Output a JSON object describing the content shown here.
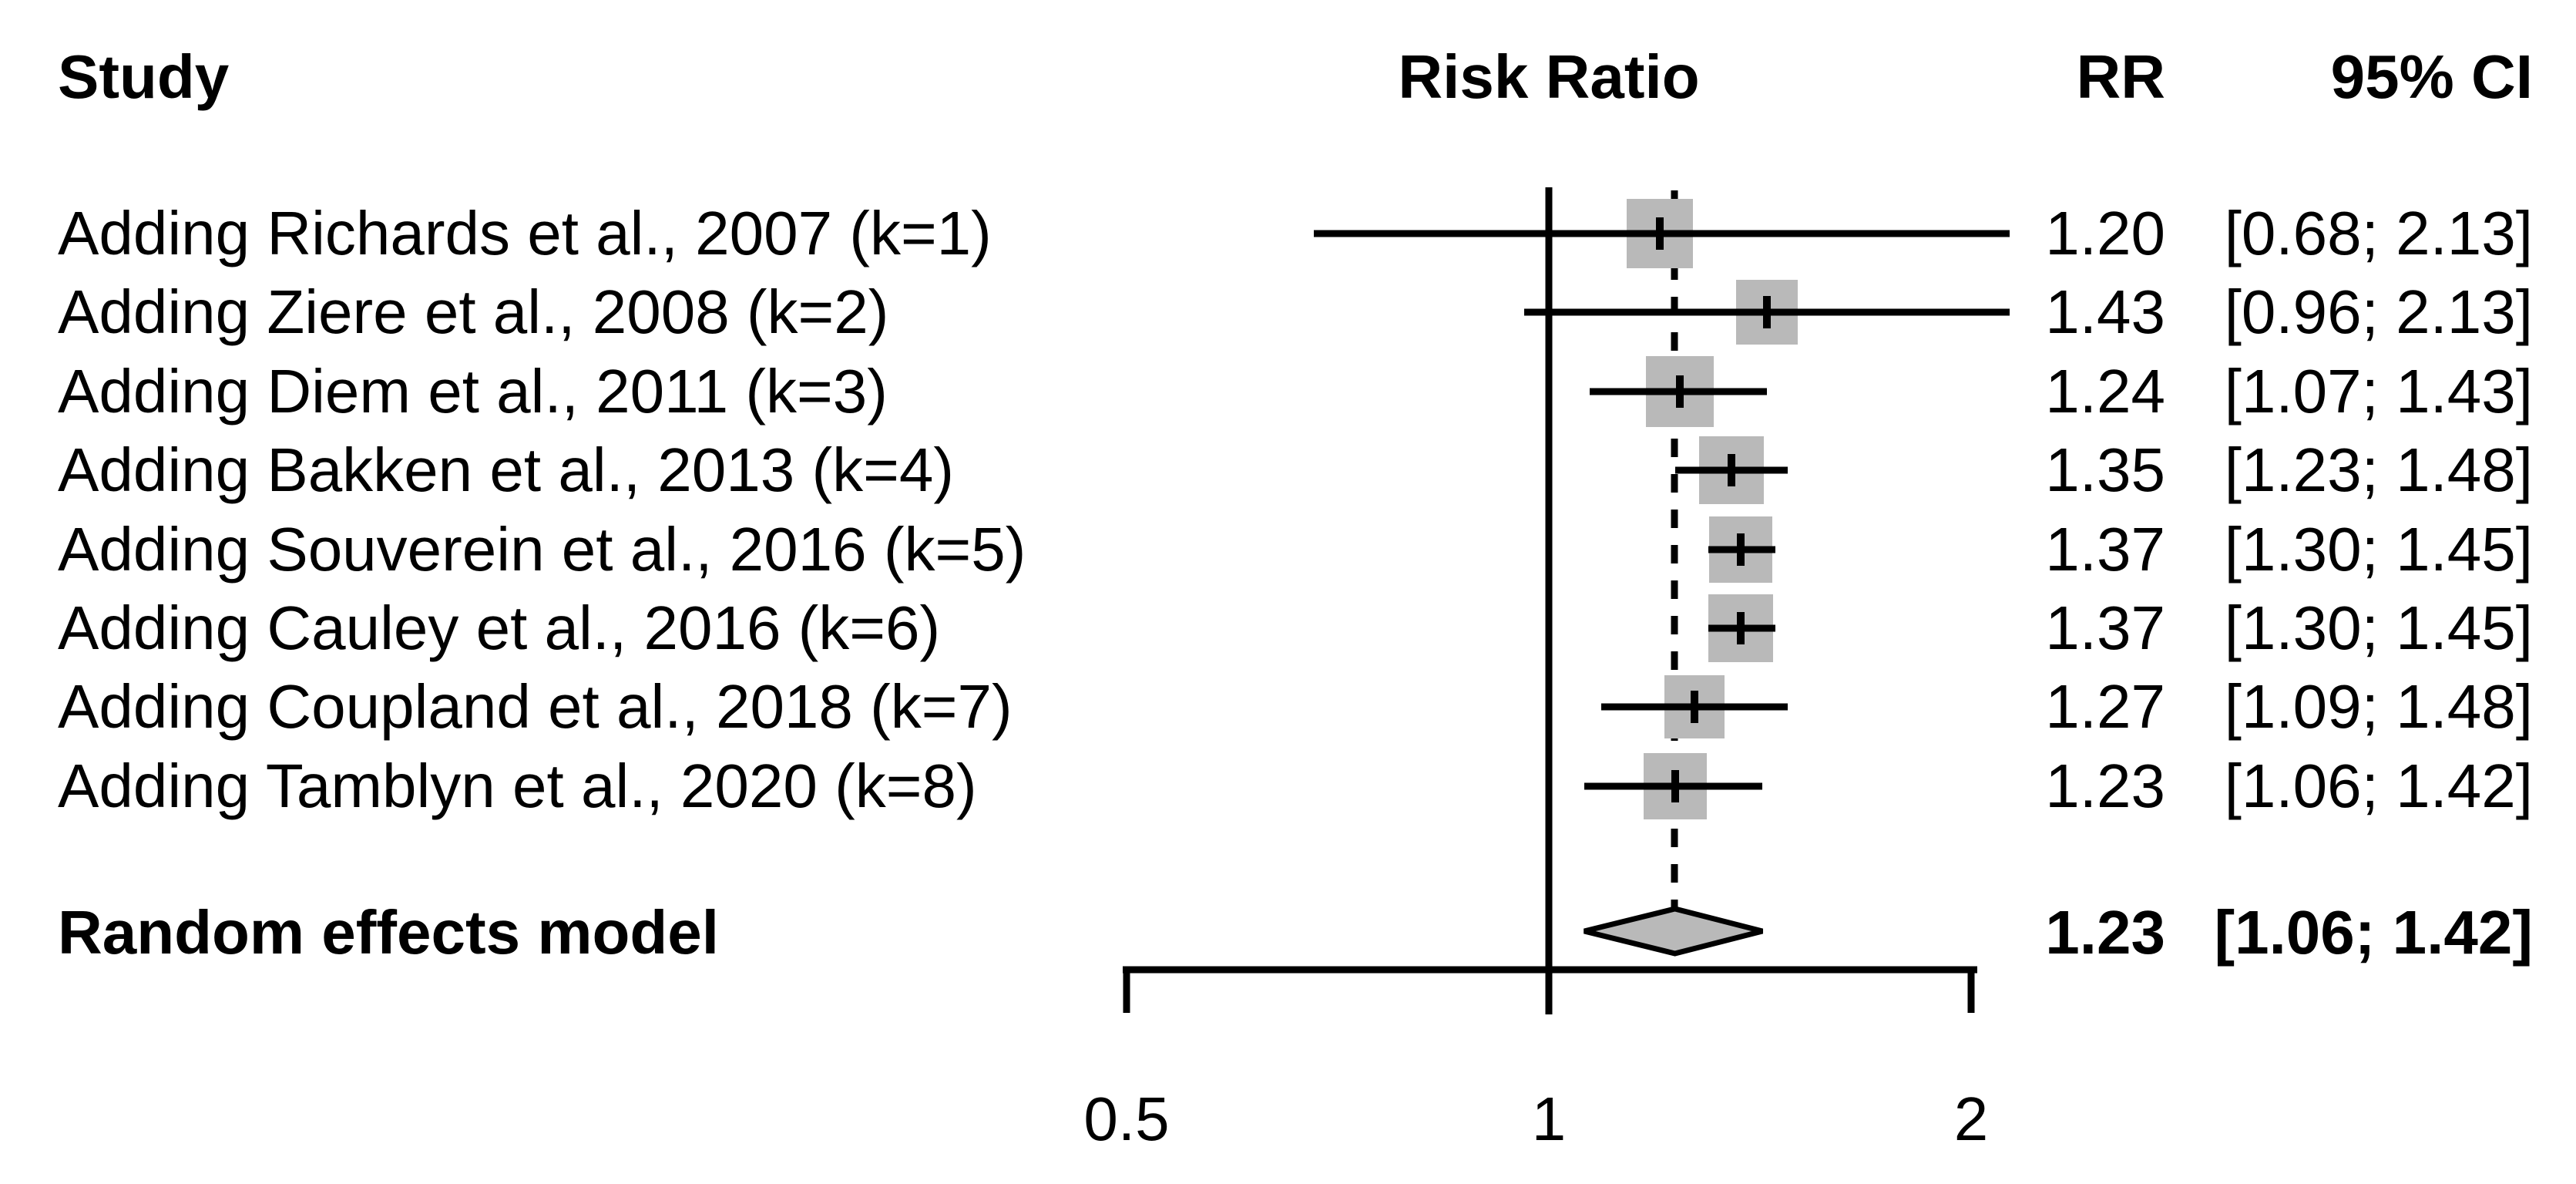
{
  "headers": {
    "study": "Study",
    "risk_ratio": "Risk Ratio",
    "rr": "RR",
    "ci": "95% CI"
  },
  "rows": [
    {
      "label": "Adding Richards et al., 2007 (k=1)",
      "rr_text": "1.20",
      "ci_text": "[0.68; 2.13]",
      "rr": 1.2,
      "lo": 0.68,
      "hi": 2.13,
      "square": 86
    },
    {
      "label": "Adding Ziere et al., 2008 (k=2)",
      "rr_text": "1.43",
      "ci_text": "[0.96; 2.13]",
      "rr": 1.43,
      "lo": 0.96,
      "hi": 2.13,
      "square": 80
    },
    {
      "label": "Adding Diem et al., 2011 (k=3)",
      "rr_text": "1.24",
      "ci_text": "[1.07; 1.43]",
      "rr": 1.24,
      "lo": 1.07,
      "hi": 1.43,
      "square": 88
    },
    {
      "label": "Adding Bakken et al., 2013 (k=4)",
      "rr_text": "1.35",
      "ci_text": "[1.23; 1.48]",
      "rr": 1.35,
      "lo": 1.23,
      "hi": 1.48,
      "square": 84
    },
    {
      "label": "Adding Souverein et al., 2016 (k=5)",
      "rr_text": "1.37",
      "ci_text": "[1.30; 1.45]",
      "rr": 1.37,
      "lo": 1.3,
      "hi": 1.45,
      "square": 82
    },
    {
      "label": "Adding Cauley et al., 2016 (k=6)",
      "rr_text": "1.37",
      "ci_text": "[1.30; 1.45]",
      "rr": 1.37,
      "lo": 1.3,
      "hi": 1.45,
      "square": 84
    },
    {
      "label": "Adding Coupland et al., 2018 (k=7)",
      "rr_text": "1.27",
      "ci_text": "[1.09; 1.48]",
      "rr": 1.27,
      "lo": 1.09,
      "hi": 1.48,
      "square": 78
    },
    {
      "label": "Adding Tamblyn et al., 2020 (k=8)",
      "rr_text": "1.23",
      "ci_text": "[1.06; 1.42]",
      "rr": 1.23,
      "lo": 1.06,
      "hi": 1.42,
      "square": 82
    }
  ],
  "summary": {
    "label": "Random effects model",
    "rr_text": "1.23",
    "ci_text": "[1.06; 1.42]",
    "rr": 1.23,
    "lo": 1.06,
    "hi": 1.42
  },
  "axis": {
    "ticks": [
      {
        "v": 0.5,
        "label": "0.5"
      },
      {
        "v": 1,
        "label": "1"
      },
      {
        "v": 2,
        "label": "2"
      }
    ],
    "reference_line": 1,
    "pooled_line": 1.23
  },
  "colors": {
    "square": "#b9b9b9",
    "diamond_fill": "#b9b9b9",
    "line": "#000000",
    "text": "#000000",
    "background": "#ffffff"
  },
  "chart_data": {
    "type": "scatter",
    "variant": "forest-plot-cumulative-meta-analysis",
    "title": "Risk Ratio",
    "x_scale": "log",
    "x_ticks": [
      0.5,
      1,
      2
    ],
    "x_range": [
      0.5,
      2
    ],
    "reference_line": 1.0,
    "pooled_estimate_line": 1.23,
    "columns": [
      "Study",
      "Risk Ratio",
      "RR",
      "95% CI"
    ],
    "studies": [
      {
        "study": "Adding Richards et al., 2007 (k=1)",
        "rr": 1.2,
        "ci_low": 0.68,
        "ci_high": 2.13
      },
      {
        "study": "Adding Ziere et al., 2008 (k=2)",
        "rr": 1.43,
        "ci_low": 0.96,
        "ci_high": 2.13
      },
      {
        "study": "Adding Diem et al., 2011 (k=3)",
        "rr": 1.24,
        "ci_low": 1.07,
        "ci_high": 1.43
      },
      {
        "study": "Adding Bakken et al., 2013 (k=4)",
        "rr": 1.35,
        "ci_low": 1.23,
        "ci_high": 1.48
      },
      {
        "study": "Adding Souverein et al., 2016 (k=5)",
        "rr": 1.37,
        "ci_low": 1.3,
        "ci_high": 1.45
      },
      {
        "study": "Adding Cauley et al., 2016 (k=6)",
        "rr": 1.37,
        "ci_low": 1.3,
        "ci_high": 1.45
      },
      {
        "study": "Adding Coupland et al., 2018 (k=7)",
        "rr": 1.27,
        "ci_low": 1.09,
        "ci_high": 1.48
      },
      {
        "study": "Adding Tamblyn et al., 2020 (k=8)",
        "rr": 1.23,
        "ci_low": 1.06,
        "ci_high": 1.42
      }
    ],
    "summary": {
      "study": "Random effects model",
      "rr": 1.23,
      "ci_low": 1.06,
      "ci_high": 1.42
    },
    "legend": "none",
    "grid": false
  }
}
